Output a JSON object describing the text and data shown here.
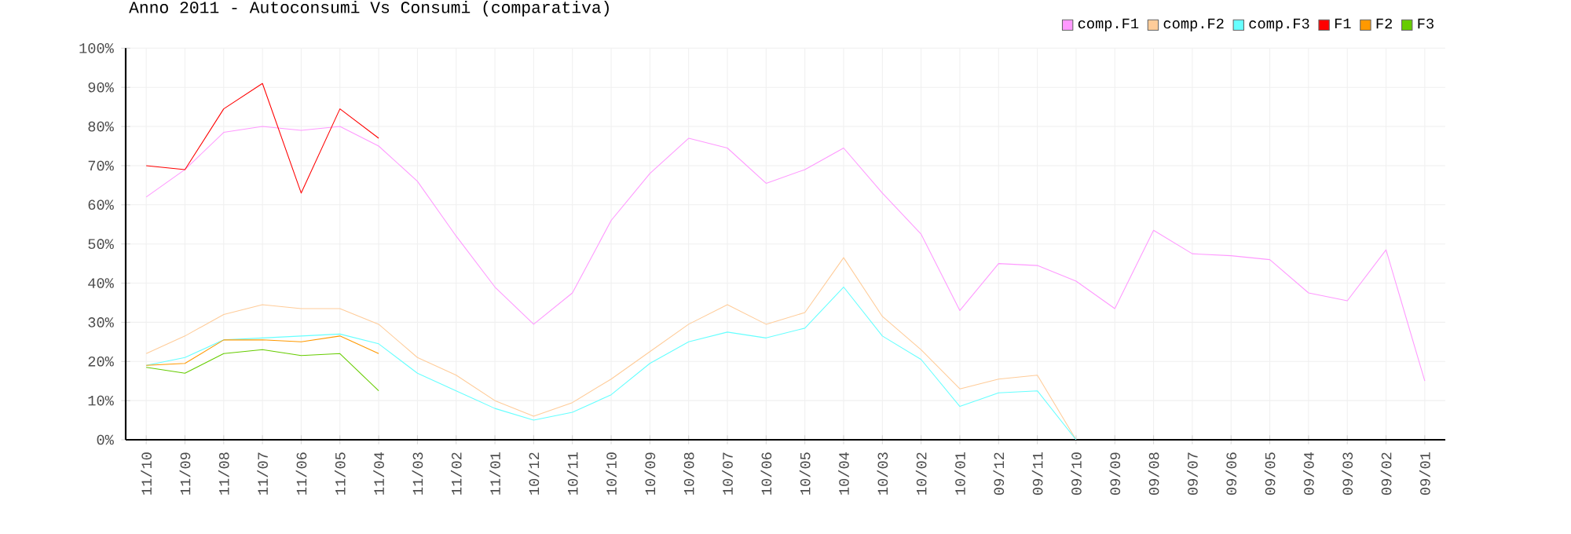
{
  "chart_data": {
    "type": "line",
    "title": "Anno 2011 - Autoconsumi Vs Consumi (comparativa)",
    "categories": [
      "11/10",
      "11/09",
      "11/08",
      "11/07",
      "11/06",
      "11/05",
      "11/04",
      "11/03",
      "11/02",
      "11/01",
      "10/12",
      "10/11",
      "10/10",
      "10/09",
      "10/08",
      "10/07",
      "10/06",
      "10/05",
      "10/04",
      "10/03",
      "10/02",
      "10/01",
      "09/12",
      "09/11",
      "09/10",
      "09/09",
      "09/08",
      "09/07",
      "09/06",
      "09/05",
      "09/04",
      "09/03",
      "09/02",
      "09/01"
    ],
    "series": [
      {
        "name": "comp.F1",
        "color": "#ff99ff",
        "values": [
          62,
          69,
          78.5,
          80,
          79,
          80,
          75,
          66,
          52,
          39,
          29.5,
          37.5,
          56,
          68,
          77,
          74.5,
          65.5,
          69,
          74.5,
          63,
          52.5,
          33,
          45,
          44.5,
          40.5,
          33.5,
          53.5,
          47.5,
          47,
          46,
          37.5,
          35.5,
          48.5,
          15
        ]
      },
      {
        "name": "comp.F2",
        "color": "#ffcc99",
        "values": [
          22,
          26.5,
          32,
          34.5,
          33.5,
          33.5,
          29.5,
          21,
          16.5,
          10,
          6,
          9.5,
          15.5,
          22.5,
          29.5,
          34.5,
          29.5,
          32.5,
          46.5,
          31.5,
          23,
          13,
          15.5,
          16.5,
          0,
          null,
          null,
          null,
          null,
          null,
          null,
          null,
          null,
          null
        ]
      },
      {
        "name": "comp.F3",
        "color": "#66ffff",
        "values": [
          19,
          21,
          25.5,
          26,
          26.5,
          27,
          24.5,
          17,
          12.5,
          8,
          5,
          7,
          11.5,
          19.5,
          25,
          27.5,
          26,
          28.5,
          39,
          26.5,
          20.5,
          8.5,
          12,
          12.5,
          0,
          null,
          null,
          null,
          null,
          null,
          null,
          null,
          null,
          null
        ]
      },
      {
        "name": "F1",
        "color": "#ff0000",
        "values": [
          70,
          69,
          84.5,
          91,
          63,
          84.5,
          77,
          null,
          null,
          null,
          null,
          null,
          null,
          null,
          null,
          null,
          null,
          null,
          null,
          null,
          null,
          null,
          null,
          null,
          null,
          null,
          null,
          null,
          null,
          null,
          null,
          null,
          null,
          null
        ]
      },
      {
        "name": "F2",
        "color": "#ff9900",
        "values": [
          19,
          19.5,
          25.5,
          25.5,
          25,
          26.5,
          22,
          null,
          null,
          null,
          null,
          null,
          null,
          null,
          null,
          null,
          null,
          null,
          null,
          null,
          null,
          null,
          null,
          null,
          null,
          null,
          null,
          null,
          null,
          null,
          null,
          null,
          null,
          null
        ]
      },
      {
        "name": "F3",
        "color": "#66cc00",
        "values": [
          18.5,
          17,
          22,
          23,
          21.5,
          22,
          12.5,
          null,
          null,
          null,
          null,
          null,
          null,
          null,
          null,
          null,
          null,
          null,
          null,
          null,
          null,
          null,
          null,
          null,
          null,
          null,
          null,
          null,
          null,
          null,
          null,
          null,
          null,
          null
        ]
      }
    ],
    "ylim": [
      0,
      100
    ],
    "yticks": [
      {
        "value": 0,
        "label": "0%"
      },
      {
        "value": 10,
        "label": "10%"
      },
      {
        "value": 20,
        "label": "20%"
      },
      {
        "value": 30,
        "label": "30%"
      },
      {
        "value": 40,
        "label": "40%"
      },
      {
        "value": 50,
        "label": "50%"
      },
      {
        "value": 60,
        "label": "60%"
      },
      {
        "value": 70,
        "label": "70%"
      },
      {
        "value": 80,
        "label": "80%"
      },
      {
        "value": 90,
        "label": "90%"
      },
      {
        "value": 100,
        "label": "100%"
      }
    ],
    "grid": true,
    "legend": "top right",
    "marker": "none",
    "line_style": "solid"
  }
}
